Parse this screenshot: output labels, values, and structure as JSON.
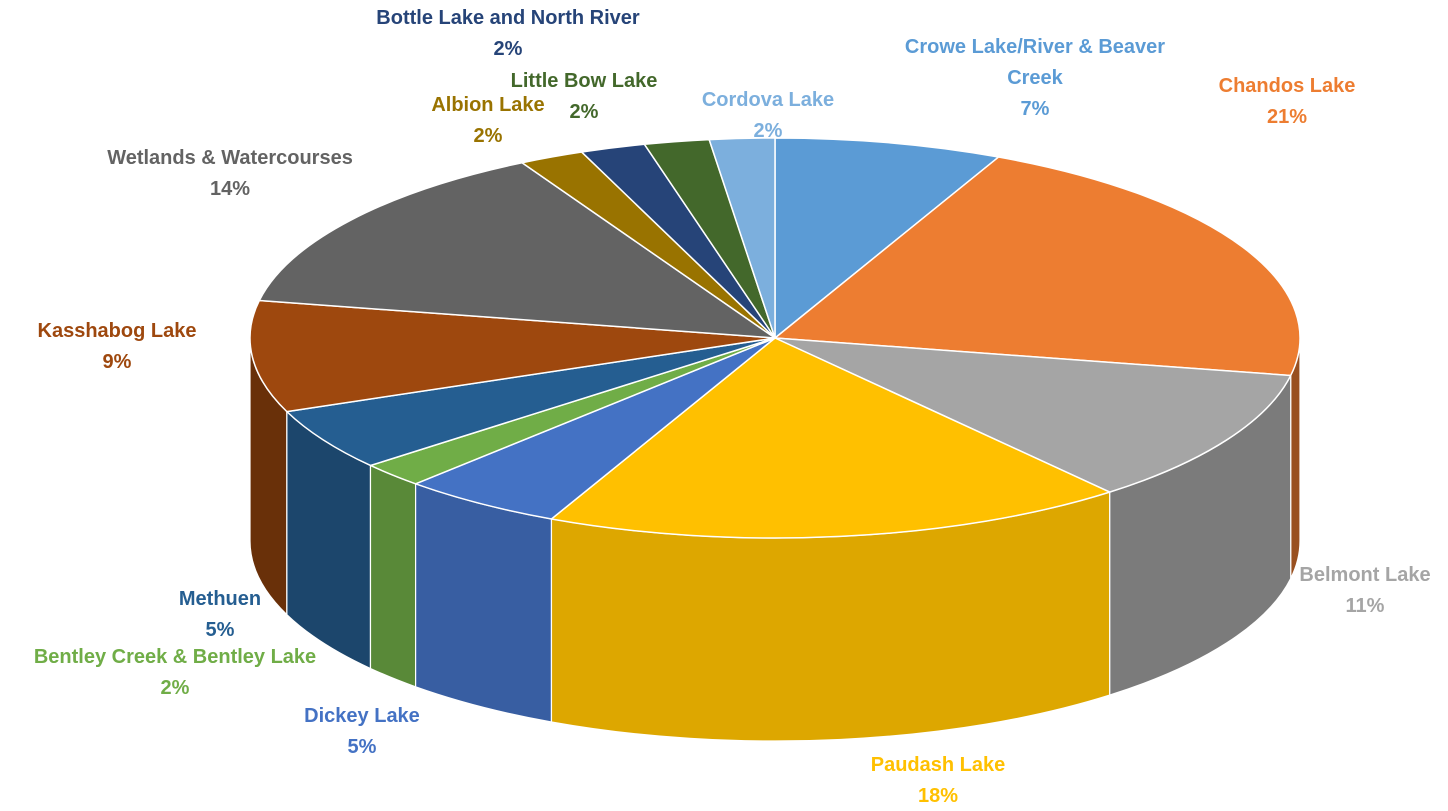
{
  "chart_data": {
    "type": "pie",
    "style": "3d",
    "title": "",
    "slices": [
      {
        "label": "Crowe Lake/River & Beaver Creek",
        "label_lines": [
          "Crowe Lake/River & Beaver",
          "Creek"
        ],
        "value_text": "7%",
        "value": 7,
        "color": "#5b9bd5",
        "label_color": "#5b9bd5"
      },
      {
        "label": "Chandos Lake",
        "label_lines": [
          "Chandos Lake"
        ],
        "value_text": "21%",
        "value": 21,
        "color": "#ed7d31",
        "label_color": "#ed7d31"
      },
      {
        "label": "Belmont Lake",
        "label_lines": [
          "Belmont Lake"
        ],
        "value_text": "11%",
        "value": 11,
        "color": "#a5a5a5",
        "label_color": "#a5a5a5"
      },
      {
        "label": "Paudash Lake",
        "label_lines": [
          "Paudash Lake"
        ],
        "value_text": "18%",
        "value": 18,
        "color": "#ffc000",
        "label_color": "#ffc000"
      },
      {
        "label": "Dickey Lake",
        "label_lines": [
          "Dickey Lake"
        ],
        "value_text": "5%",
        "value": 5,
        "color": "#4472c4",
        "label_color": "#4472c4"
      },
      {
        "label": "Bentley Creek & Bentley Lake",
        "label_lines": [
          "Bentley Creek & Bentley Lake"
        ],
        "value_text": "2%",
        "value": 2,
        "color": "#70ad47",
        "label_color": "#70ad47"
      },
      {
        "label": "Methuen",
        "label_lines": [
          "Methuen"
        ],
        "value_text": "5%",
        "value": 5,
        "color": "#255e91",
        "label_color": "#255e91"
      },
      {
        "label": "Kasshabog Lake",
        "label_lines": [
          "Kasshabog Lake"
        ],
        "value_text": "9%",
        "value": 9,
        "color": "#9e480e",
        "label_color": "#9e480e"
      },
      {
        "label": "Wetlands & Watercourses",
        "label_lines": [
          "Wetlands & Watercourses"
        ],
        "value_text": "14%",
        "value": 14,
        "color": "#636363",
        "label_color": "#636363"
      },
      {
        "label": "Albion Lake",
        "label_lines": [
          "Albion Lake"
        ],
        "value_text": "2%",
        "value": 2,
        "color": "#997300",
        "label_color": "#997300"
      },
      {
        "label": "Bottle Lake and North River",
        "label_lines": [
          "Bottle Lake and North River"
        ],
        "value_text": "2%",
        "value": 2,
        "color": "#264478",
        "label_color": "#264478"
      },
      {
        "label": "Little Bow Lake",
        "label_lines": [
          "Little Bow Lake"
        ],
        "value_text": "2%",
        "value": 2,
        "color": "#43682b",
        "label_color": "#43682b"
      },
      {
        "label": "Cordova Lake",
        "label_lines": [
          "Cordova Lake"
        ],
        "value_text": "2%",
        "value": 2,
        "color": "#7cafdd",
        "label_color": "#7cafdd"
      }
    ]
  }
}
